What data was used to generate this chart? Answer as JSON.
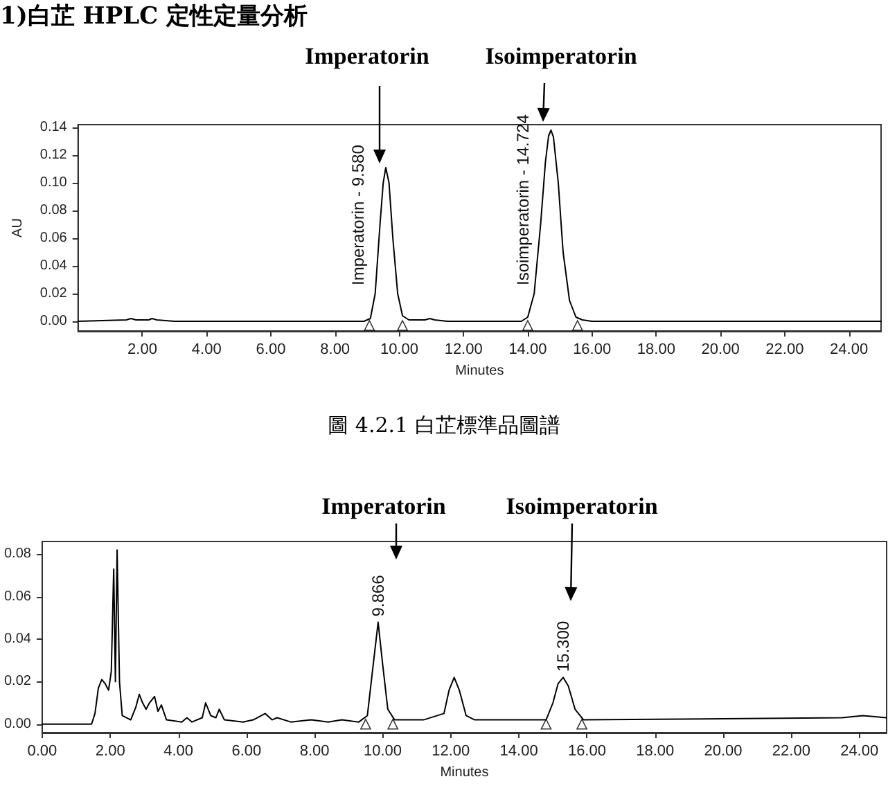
{
  "chart_data": [
    {
      "type": "line",
      "title": "1)白芷 HPLC 定性定量分析",
      "xlabel": "Minutes",
      "ylabel": "AU",
      "xlim": [
        0,
        25
      ],
      "ylim": [
        -0.007,
        0.142
      ],
      "xticks": [
        {
          "value": 2,
          "label": "2.00"
        },
        {
          "value": 4,
          "label": "4.00"
        },
        {
          "value": 6,
          "label": "6.00"
        },
        {
          "value": 8,
          "label": "8.00"
        },
        {
          "value": 10,
          "label": "10.00"
        },
        {
          "value": 12,
          "label": "12.00"
        },
        {
          "value": 14,
          "label": "14.00"
        },
        {
          "value": 16,
          "label": "16.00"
        },
        {
          "value": 18,
          "label": "18.00"
        },
        {
          "value": 20,
          "label": "20.00"
        },
        {
          "value": 22,
          "label": "22.00"
        },
        {
          "value": 24,
          "label": "24.00"
        }
      ],
      "yticks": [
        {
          "value": 0,
          "label": "0.00"
        },
        {
          "value": 0.02,
          "label": "0.02"
        },
        {
          "value": 0.04,
          "label": "0.04"
        },
        {
          "value": 0.06,
          "label": "0.06"
        },
        {
          "value": 0.08,
          "label": "0.08"
        },
        {
          "value": 0.1,
          "label": "0.10"
        },
        {
          "value": 0.12,
          "label": "0.12"
        },
        {
          "value": 0.14,
          "label": "0.14"
        }
      ],
      "grid": false,
      "annotations": [
        "Imperatorin",
        "Isoimperatorin",
        "圖 4.2.1 白芷標準品圖譜",
        {
          "text": "Imperatorin - 9.580",
          "x": 9.58,
          "y": 0.111
        },
        {
          "text": "Isoimperatorin - 14.724",
          "x": 14.724,
          "y": 0.138
        }
      ],
      "series": [
        {
          "type": "line",
          "color": "#000000",
          "marker": "none",
          "x": [
            0,
            1.5,
            1.65,
            1.8,
            2.2,
            2.3,
            2.45,
            3,
            8.9,
            9.1,
            9.25,
            9.4,
            9.5,
            9.58,
            9.68,
            9.8,
            9.95,
            10.1,
            10.3,
            10.8,
            10.95,
            11.1,
            11.5,
            13.8,
            14.0,
            14.2,
            14.4,
            14.55,
            14.65,
            14.724,
            14.8,
            14.95,
            15.1,
            15.3,
            15.5,
            15.7,
            16,
            25
          ],
          "values": [
            0,
            0.001,
            0.002,
            0.001,
            0.001,
            0.002,
            0.001,
            0,
            0,
            0.002,
            0.02,
            0.07,
            0.1,
            0.111,
            0.1,
            0.06,
            0.02,
            0.004,
            0.001,
            0.001,
            0.002,
            0.001,
            0,
            0,
            0.003,
            0.02,
            0.07,
            0.115,
            0.134,
            0.138,
            0.133,
            0.1,
            0.05,
            0.015,
            0.003,
            0.001,
            0,
            0
          ]
        },
        {
          "type": "scatter",
          "color": "#000000",
          "marker": "triangle",
          "x": [
            9.07,
            10.1,
            14.0,
            15.55
          ],
          "values": [
            -0.003,
            -0.003,
            -0.003,
            -0.003
          ]
        }
      ]
    },
    {
      "type": "line",
      "xlabel": "Minutes",
      "xlim": [
        0,
        24.8
      ],
      "ylim": [
        -0.004,
        0.086
      ],
      "xticks": [
        {
          "value": 0,
          "label": "0.00"
        },
        {
          "value": 2,
          "label": "2.00"
        },
        {
          "value": 4,
          "label": "4.00"
        },
        {
          "value": 6,
          "label": "6.00"
        },
        {
          "value": 8,
          "label": "8.00"
        },
        {
          "value": 10,
          "label": "10.00"
        },
        {
          "value": 12,
          "label": "12.00"
        },
        {
          "value": 14,
          "label": "14.00"
        },
        {
          "value": 16,
          "label": "16.00"
        },
        {
          "value": 18,
          "label": "18.00"
        },
        {
          "value": 20,
          "label": "20.00"
        },
        {
          "value": 22,
          "label": "22.00"
        },
        {
          "value": 24,
          "label": "24.00"
        }
      ],
      "yticks": [
        {
          "value": 0,
          "label": "0.00"
        },
        {
          "value": 0.02,
          "label": "0.02"
        },
        {
          "value": 0.04,
          "label": "0.04"
        },
        {
          "value": 0.06,
          "label": "0.06"
        },
        {
          "value": 0.08,
          "label": "0.08"
        }
      ],
      "grid": false,
      "annotations": [
        "Imperatorin",
        "Isoimperatorin",
        {
          "text": "9.866",
          "x": 9.866,
          "y": 0.048
        },
        {
          "text": "15.300",
          "x": 15.3,
          "y": 0.022
        }
      ],
      "series": [
        {
          "type": "line",
          "color": "#000000",
          "marker": "none",
          "x": [
            0,
            1.45,
            1.55,
            1.65,
            1.75,
            1.85,
            1.95,
            2.03,
            2.1,
            2.15,
            2.2,
            2.27,
            2.35,
            2.6,
            2.75,
            2.85,
            2.95,
            3.05,
            3.15,
            3.3,
            3.4,
            3.5,
            3.65,
            4.1,
            4.25,
            4.4,
            4.7,
            4.8,
            4.95,
            5.1,
            5.2,
            5.35,
            5.9,
            6.2,
            6.55,
            6.75,
            6.9,
            7.3,
            7.9,
            8.4,
            8.8,
            9.3,
            9.55,
            9.7,
            9.866,
            10.0,
            10.15,
            10.35,
            11.2,
            11.8,
            11.95,
            12.1,
            12.25,
            12.45,
            12.7,
            14.8,
            15.0,
            15.15,
            15.3,
            15.45,
            15.65,
            15.9,
            23.5,
            24.1,
            24.8
          ],
          "values": [
            0,
            0,
            0.005,
            0.017,
            0.021,
            0.019,
            0.016,
            0.025,
            0.073,
            0.02,
            0.082,
            0.02,
            0.004,
            0.002,
            0.008,
            0.014,
            0.01,
            0.007,
            0.01,
            0.013,
            0.006,
            0.009,
            0.002,
            0.001,
            0.003,
            0.001,
            0.003,
            0.01,
            0.004,
            0.003,
            0.007,
            0.002,
            0.001,
            0.002,
            0.005,
            0.002,
            0.003,
            0.001,
            0.002,
            0.001,
            0.002,
            0.001,
            0.004,
            0.025,
            0.048,
            0.028,
            0.007,
            0.002,
            0.002,
            0.005,
            0.016,
            0.022,
            0.016,
            0.004,
            0.002,
            0.002,
            0.01,
            0.019,
            0.022,
            0.018,
            0.007,
            0.002,
            0.003,
            0.004,
            0.003
          ]
        },
        {
          "type": "scatter",
          "color": "#000000",
          "marker": "triangle",
          "x": [
            9.5,
            10.3,
            14.8,
            15.85
          ],
          "values": [
            0,
            0,
            0,
            0
          ]
        }
      ]
    }
  ]
}
